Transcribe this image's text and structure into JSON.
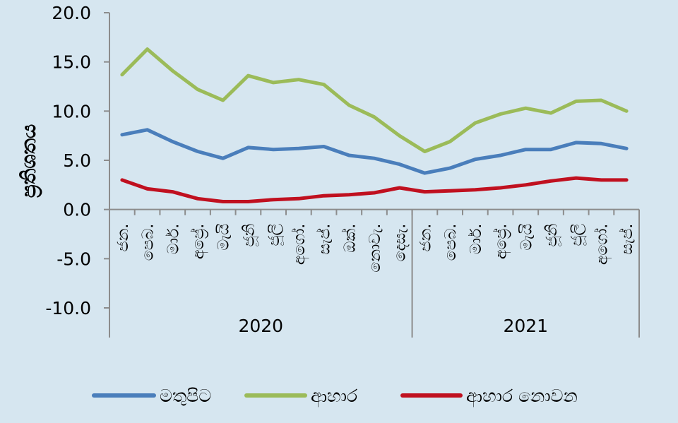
{
  "chart_data": {
    "type": "line",
    "ylabel": "ප්‍රතිශතය",
    "ylim": [
      -10,
      20
    ],
    "yticks": [
      "20.0",
      "15.0",
      "10.0",
      "5.0",
      "0.0",
      "-5.0",
      "-10.0"
    ],
    "ytick_values": [
      20,
      15,
      10,
      5,
      0,
      -5,
      -10
    ],
    "categories": [
      "ජන.",
      "පෙබ.",
      "මාර්.",
      "අප්‍රේ.",
      "මැයි",
      "ජූනි",
      "ජූලි",
      "අගෝ.",
      "සැප්.",
      "ඔක්.",
      "නොවැ.",
      "දෙසැ.",
      "ජන.",
      "පෙබ.",
      "මාර්.",
      "අප්‍රේ.",
      "මැයි",
      "ජූනි",
      "ජූලි",
      "අගෝ.",
      "සැප්."
    ],
    "year_groups": [
      {
        "label": "2020",
        "count": 12
      },
      {
        "label": "2021",
        "count": 9
      }
    ],
    "series": [
      {
        "name": "මතුපිට",
        "color": "#4a7ebb",
        "values": [
          7.6,
          8.1,
          6.9,
          5.9,
          5.2,
          6.3,
          6.1,
          6.2,
          6.4,
          5.5,
          5.2,
          4.6,
          3.7,
          4.2,
          5.1,
          5.5,
          6.1,
          6.1,
          6.8,
          6.7,
          6.2
        ]
      },
      {
        "name": "ආහාර",
        "color": "#9bbb59",
        "values": [
          13.7,
          16.3,
          14.1,
          12.2,
          11.1,
          13.6,
          12.9,
          13.2,
          12.7,
          10.6,
          9.4,
          7.5,
          5.9,
          6.9,
          8.8,
          9.7,
          10.3,
          9.8,
          11.0,
          11.1,
          10.0
        ]
      },
      {
        "name": "ආහාර නොවන",
        "color": "#c0101f",
        "values": [
          3.0,
          2.1,
          1.8,
          1.1,
          0.8,
          0.8,
          1.0,
          1.1,
          1.4,
          1.5,
          1.7,
          2.2,
          1.8,
          1.9,
          2.0,
          2.2,
          2.5,
          2.9,
          3.2,
          3.0,
          3.0
        ]
      }
    ],
    "legend_position": "bottom",
    "grid": false
  }
}
